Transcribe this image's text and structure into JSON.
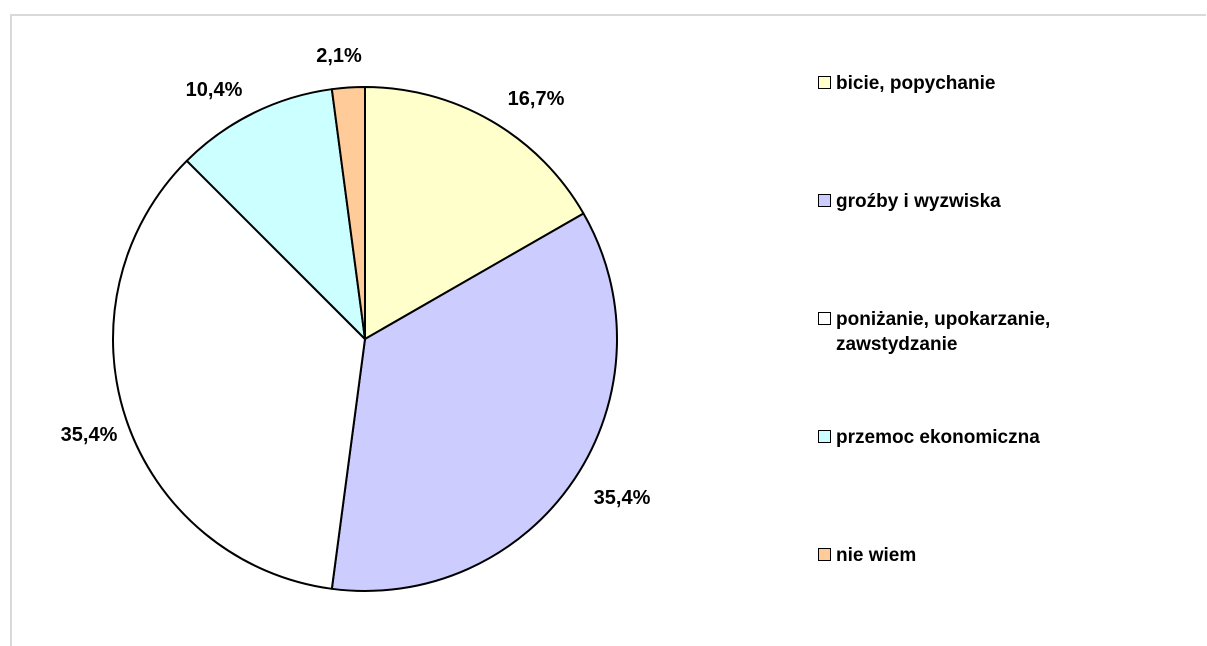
{
  "chart_data": {
    "type": "pie",
    "categories": [
      "bicie, popychanie",
      "groźby i wyzwiska",
      "poniżanie, upokarzanie, zawstydzanie",
      "przemoc ekonomiczna",
      "nie wiem"
    ],
    "values": [
      16.7,
      35.4,
      35.4,
      10.4,
      2.1
    ],
    "value_labels": [
      "16,7%",
      "35,4%",
      "35,4%",
      "10,4%",
      "2,1%"
    ],
    "colors": [
      "#ffffcc",
      "#ccccff",
      "#ffffff",
      "#ccffff",
      "#ffcc99"
    ],
    "start_angle_deg": 0,
    "direction": "clockwise",
    "legend_position": "right",
    "title": ""
  },
  "legend": {
    "items": [
      {
        "label": "bicie, popychanie",
        "color": "#ffffcc"
      },
      {
        "label": "groźby i wyzwiska",
        "color": "#ccccff"
      },
      {
        "label": "poniżanie, upokarzanie, zawstydzanie",
        "color": "#ffffff"
      },
      {
        "label": "przemoc ekonomiczna",
        "color": "#ccffff"
      },
      {
        "label": "nie wiem",
        "color": "#ffcc99"
      }
    ]
  }
}
